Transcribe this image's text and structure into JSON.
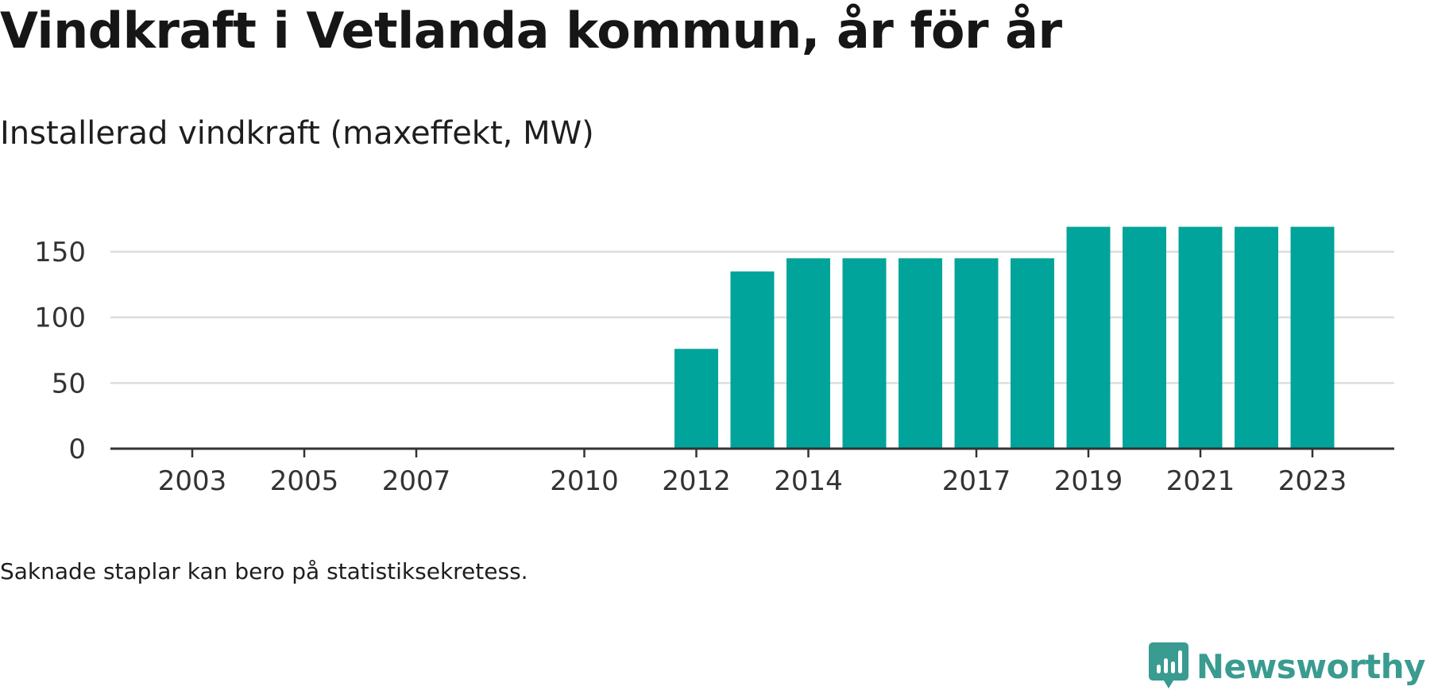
{
  "title": "Vindkraft i Vetlanda kommun, år för år",
  "subtitle": "Installerad vindkraft (maxeffekt, MW)",
  "footnote": "Saknade staplar kan bero på statistiksekretess.",
  "brand": {
    "name": "Newsworthy",
    "icon": "newsworthy-logo-icon",
    "color": "#3a9b90"
  },
  "colors": {
    "bar": "#00a49a",
    "grid": "#dddddd",
    "axis": "#333333",
    "text": "#333333"
  },
  "chart_data": {
    "type": "bar",
    "title": "Installerad vindkraft (maxeffekt, MW)",
    "categories": [
      "2003",
      "2004",
      "2005",
      "2006",
      "2007",
      "2008",
      "2009",
      "2010",
      "2011",
      "2012",
      "2013",
      "2014",
      "2015",
      "2016",
      "2017",
      "2018",
      "2019",
      "2020",
      "2021",
      "2022",
      "2023"
    ],
    "values": [
      0,
      0,
      0,
      0,
      0,
      0,
      0,
      0,
      0,
      76,
      135,
      145,
      145,
      145,
      145,
      145,
      169,
      169,
      169,
      169,
      169
    ],
    "x_tick_labels": [
      "2003",
      "2005",
      "2007",
      "2010",
      "2012",
      "2014",
      "2017",
      "2019",
      "2021",
      "2023"
    ],
    "y_ticks": [
      0,
      50,
      100,
      150
    ],
    "ylim": [
      0,
      180
    ],
    "grid": true,
    "legend": "none"
  }
}
